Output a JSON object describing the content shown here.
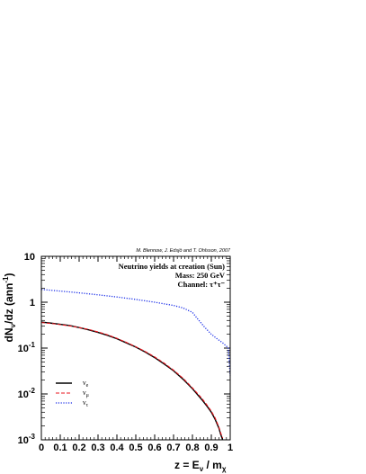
{
  "chart_data": {
    "type": "line",
    "credit": "M. Blennow, J. Edsjö and T. Ohlsson, 2007",
    "info_lines": [
      "Neutrino yields at creation (Sun)",
      "Mass: 250 GeV",
      "Channel: τ⁺τ⁻"
    ],
    "xlabel_parts": {
      "base": "z = E",
      "sub1": "ν",
      "mid": " / m",
      "sub2": "χ"
    },
    "ylabel_parts": {
      "pre": "dN",
      "sub": "ν",
      "post": "/dz (ann",
      "sup": "-1",
      "close": ")"
    },
    "xlim": [
      0,
      1
    ],
    "ylim": [
      0.001,
      10
    ],
    "yscale": "log",
    "x_ticks": [
      "0",
      "0.1",
      "0.2",
      "0.3",
      "0.4",
      "0.5",
      "0.6",
      "0.7",
      "0.8",
      "0.9",
      "1"
    ],
    "y_ticks": [
      {
        "base": "10",
        "exp": "-3"
      },
      {
        "base": "10",
        "exp": "-2"
      },
      {
        "base": "10",
        "exp": "-1"
      },
      {
        "base": "1",
        "exp": ""
      },
      {
        "base": "10",
        "exp": ""
      }
    ],
    "legend_position": "lower-left",
    "series": [
      {
        "name": "ν",
        "sub": "e",
        "color": "#000000",
        "style": "solid",
        "x": [
          0.0,
          0.05,
          0.1,
          0.15,
          0.2,
          0.25,
          0.3,
          0.35,
          0.4,
          0.45,
          0.5,
          0.55,
          0.6,
          0.65,
          0.7,
          0.75,
          0.8,
          0.85,
          0.88,
          0.9,
          0.92,
          0.94,
          0.95,
          0.96
        ],
        "values": [
          0.37,
          0.35,
          0.33,
          0.31,
          0.28,
          0.25,
          0.22,
          0.19,
          0.16,
          0.13,
          0.105,
          0.082,
          0.062,
          0.045,
          0.032,
          0.021,
          0.013,
          0.0075,
          0.0052,
          0.004,
          0.0028,
          0.0018,
          0.0013,
          0.001
        ]
      },
      {
        "name": "ν",
        "sub": "μ",
        "color": "#e8141c",
        "style": "dashed",
        "x": [
          0.0,
          0.05,
          0.1,
          0.15,
          0.2,
          0.25,
          0.3,
          0.35,
          0.4,
          0.45,
          0.5,
          0.55,
          0.6,
          0.65,
          0.7,
          0.75,
          0.8,
          0.85,
          0.88,
          0.9,
          0.92,
          0.94,
          0.95,
          0.96
        ],
        "values": [
          0.36,
          0.345,
          0.325,
          0.305,
          0.28,
          0.255,
          0.225,
          0.195,
          0.163,
          0.133,
          0.107,
          0.084,
          0.064,
          0.047,
          0.033,
          0.022,
          0.0135,
          0.008,
          0.0055,
          0.0042,
          0.003,
          0.0019,
          0.0014,
          0.0011
        ]
      },
      {
        "name": "ν",
        "sub": "τ",
        "color": "#1a2ee8",
        "style": "dotted",
        "x": [
          0.0,
          0.1,
          0.2,
          0.3,
          0.4,
          0.5,
          0.6,
          0.7,
          0.75,
          0.8,
          0.83,
          0.86,
          0.9,
          0.93,
          0.96,
          0.98,
          0.99,
          0.995,
          1.0
        ],
        "values": [
          1.9,
          1.75,
          1.6,
          1.45,
          1.3,
          1.15,
          1.0,
          0.85,
          0.75,
          0.6,
          0.42,
          0.3,
          0.2,
          0.16,
          0.13,
          0.11,
          0.1,
          0.05,
          0.025
        ]
      }
    ]
  }
}
